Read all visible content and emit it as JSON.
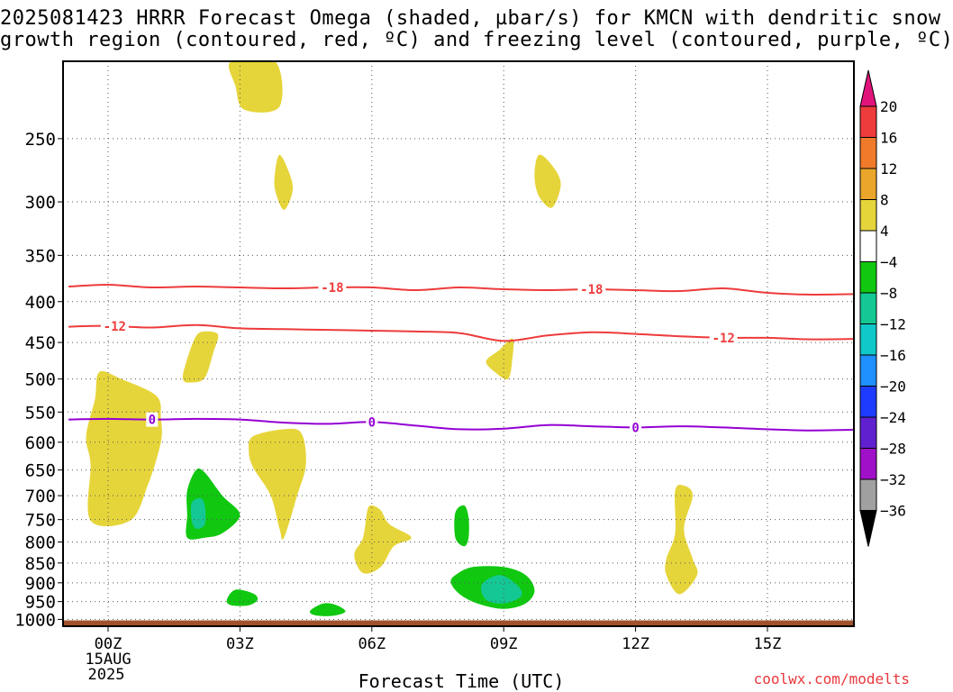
{
  "chart_data": {
    "type": "contour",
    "title": "2025081423 HRRR Forecast Omega (shaded, µbar/s) for KMCN with dendritic snow growth region (contoured, red, ºC) and freezing level (contoured, purple, ºC)",
    "title_lines": [
      "2025081423 HRRR Forecast Omega (shaded, µbar/s) for KMCN with dendritic snow",
      "growth region (contoured, red, ºC) and freezing level (contoured, purple, ºC)"
    ],
    "xlabel": "Forecast Time (UTC)",
    "x_ticks": [
      {
        "hour": 0,
        "label": "00Z",
        "date": "15AUG",
        "year": "2025"
      },
      {
        "hour": 3,
        "label": "03Z"
      },
      {
        "hour": 6,
        "label": "06Z"
      },
      {
        "hour": 9,
        "label": "09Z"
      },
      {
        "hour": 12,
        "label": "12Z"
      },
      {
        "hour": 15,
        "label": "15Z"
      }
    ],
    "xlim": [
      -0.6,
      17.4
    ],
    "y_ticks": [
      250,
      300,
      350,
      400,
      450,
      500,
      550,
      600,
      650,
      700,
      750,
      800,
      850,
      900,
      950,
      1000
    ],
    "ylim": [
      200,
      1020
    ],
    "y_scale": "pressure (log, inverted)",
    "ground_pressure": 1003,
    "ground_color": "#a0522d",
    "grid": true,
    "colorbar": {
      "labels": [
        "20",
        "16",
        "12",
        "8",
        "4",
        "−4",
        "−8",
        "−12",
        "−16",
        "−20",
        "−24",
        "−28",
        "−32",
        "−36"
      ],
      "colors": [
        "#e0147a",
        "#ee3b3b",
        "#f07a2a",
        "#eaa62a",
        "#e6d53a",
        "#ffffff",
        "#10c810",
        "#14c894",
        "#10c8c8",
        "#1e90ff",
        "#1e3cff",
        "#6020d0",
        "#a010c8",
        "#a0a0a0",
        "#000000"
      ]
    },
    "contours": [
      {
        "name": "-18",
        "color": "#ee3b3b",
        "points": [
          [
            -0.9,
            383
          ],
          [
            0,
            381
          ],
          [
            1,
            384
          ],
          [
            2,
            383
          ],
          [
            3,
            384
          ],
          [
            4,
            385
          ],
          [
            5,
            384
          ],
          [
            6,
            384
          ],
          [
            7,
            387
          ],
          [
            8,
            384
          ],
          [
            9,
            386
          ],
          [
            10,
            387
          ],
          [
            11,
            386
          ],
          [
            12,
            387
          ],
          [
            13,
            388
          ],
          [
            14,
            385
          ],
          [
            15,
            390
          ],
          [
            16,
            392
          ],
          [
            17.4,
            391
          ]
        ],
        "labels": [
          {
            "x": 5.1,
            "text": "-18"
          },
          {
            "x": 11.0,
            "text": "-18"
          }
        ]
      },
      {
        "name": "-12",
        "color": "#ee3b3b",
        "points": [
          [
            -0.9,
            430
          ],
          [
            0,
            429
          ],
          [
            1,
            431
          ],
          [
            2,
            428
          ],
          [
            3,
            432
          ],
          [
            4,
            433
          ],
          [
            5,
            434
          ],
          [
            6,
            435
          ],
          [
            7,
            436
          ],
          [
            8,
            438
          ],
          [
            9,
            448
          ],
          [
            10,
            441
          ],
          [
            11,
            437
          ],
          [
            12,
            439
          ],
          [
            13,
            442
          ],
          [
            14,
            444
          ],
          [
            15,
            444
          ],
          [
            16,
            446
          ],
          [
            17.4,
            445
          ]
        ],
        "labels": [
          {
            "x": 0.15,
            "text": "-12"
          },
          {
            "x": 14.0,
            "text": "-12"
          }
        ]
      },
      {
        "name": "0",
        "color": "#9400d3",
        "points": [
          [
            -0.9,
            562
          ],
          [
            0,
            561
          ],
          [
            1,
            562
          ],
          [
            2,
            561
          ],
          [
            3,
            562
          ],
          [
            4,
            567
          ],
          [
            5,
            569
          ],
          [
            6,
            566
          ],
          [
            7,
            572
          ],
          [
            8,
            578
          ],
          [
            9,
            577
          ],
          [
            10,
            571
          ],
          [
            11,
            573
          ],
          [
            12,
            575
          ],
          [
            13,
            573
          ],
          [
            14,
            575
          ],
          [
            15,
            578
          ],
          [
            16,
            580
          ],
          [
            17.4,
            578
          ]
        ],
        "labels": [
          {
            "x": 1.0,
            "text": "0"
          },
          {
            "x": 6.0,
            "text": "0"
          },
          {
            "x": 12.0,
            "text": "0"
          }
        ]
      }
    ],
    "shaded_regions": [
      {
        "category": "4 to 8",
        "color": "#e6d53a",
        "points": [
          [
            2.8,
            200
          ],
          [
            3.8,
            200
          ],
          [
            3.9,
            228
          ],
          [
            3.1,
            230
          ],
          [
            2.9,
            215
          ]
        ]
      },
      {
        "category": "4 to 8",
        "color": "#e6d53a",
        "points": [
          [
            3.9,
            262
          ],
          [
            4.1,
            274
          ],
          [
            4.2,
            290
          ],
          [
            4.0,
            307
          ],
          [
            3.8,
            290
          ],
          [
            3.8,
            275
          ]
        ]
      },
      {
        "category": "4 to 8",
        "color": "#e6d53a",
        "points": [
          [
            9.8,
            262
          ],
          [
            10.1,
            270
          ],
          [
            10.3,
            285
          ],
          [
            10.1,
            305
          ],
          [
            9.8,
            295
          ],
          [
            9.7,
            278
          ]
        ]
      },
      {
        "category": "4 to 8",
        "color": "#e6d53a",
        "points": [
          [
            1.8,
            472
          ],
          [
            2.0,
            442
          ],
          [
            2.2,
            436
          ],
          [
            2.5,
            440
          ],
          [
            2.4,
            462
          ],
          [
            2.2,
            498
          ],
          [
            1.9,
            505
          ],
          [
            1.7,
            500
          ]
        ]
      },
      {
        "category": "4 to 8",
        "color": "#e6d53a",
        "points": [
          [
            8.6,
            475
          ],
          [
            8.9,
            460
          ],
          [
            9.2,
            445
          ],
          [
            9.2,
            470
          ],
          [
            9.1,
            500
          ],
          [
            8.8,
            490
          ]
        ]
      },
      {
        "category": "4 to 8",
        "color": "#e6d53a",
        "points": [
          [
            -0.2,
            490
          ],
          [
            0.3,
            500
          ],
          [
            1.1,
            525
          ],
          [
            1.2,
            560
          ],
          [
            1.2,
            600
          ],
          [
            0.9,
            680
          ],
          [
            0.5,
            752
          ],
          [
            -0.4,
            752
          ],
          [
            -0.4,
            640
          ],
          [
            -0.5,
            590
          ],
          [
            -0.3,
            530
          ]
        ]
      },
      {
        "category": "4 to 8",
        "color": "#e6d53a",
        "points": [
          [
            3.3,
            590
          ],
          [
            4.0,
            578
          ],
          [
            4.4,
            585
          ],
          [
            4.5,
            640
          ],
          [
            4.3,
            700
          ],
          [
            4.0,
            790
          ],
          [
            3.9,
            770
          ],
          [
            3.7,
            700
          ],
          [
            3.3,
            645
          ],
          [
            3.2,
            615
          ]
        ]
      },
      {
        "category": "4 to 8",
        "color": "#e6d53a",
        "points": [
          [
            5.9,
            730
          ],
          [
            6.0,
            720
          ],
          [
            6.2,
            730
          ],
          [
            6.4,
            760
          ],
          [
            6.9,
            790
          ],
          [
            6.5,
            810
          ],
          [
            6.2,
            860
          ],
          [
            5.8,
            875
          ],
          [
            5.6,
            830
          ],
          [
            5.8,
            790
          ]
        ]
      },
      {
        "category": "4 to 8",
        "color": "#e6d53a",
        "points": [
          [
            12.9,
            690
          ],
          [
            13.1,
            680
          ],
          [
            13.3,
            700
          ],
          [
            13.1,
            770
          ],
          [
            13.3,
            840
          ],
          [
            13.4,
            880
          ],
          [
            13.0,
            930
          ],
          [
            12.7,
            880
          ],
          [
            12.7,
            840
          ],
          [
            12.9,
            780
          ]
        ]
      },
      {
        "category": "-4 to -8",
        "color": "#10c810",
        "points": [
          [
            1.8,
            690
          ],
          [
            2.0,
            650
          ],
          [
            2.2,
            655
          ],
          [
            2.6,
            700
          ],
          [
            3.0,
            740
          ],
          [
            2.6,
            780
          ],
          [
            2.2,
            790
          ],
          [
            1.8,
            790
          ],
          [
            1.8,
            740
          ]
        ]
      },
      {
        "category": "-4 to -8",
        "color": "#10c810",
        "points": [
          [
            7.9,
            735
          ],
          [
            8.1,
            720
          ],
          [
            8.2,
            745
          ],
          [
            8.2,
            790
          ],
          [
            8.1,
            810
          ],
          [
            7.9,
            790
          ]
        ]
      },
      {
        "category": "-4 to -8",
        "color": "#10c810",
        "points": [
          [
            7.9,
            880
          ],
          [
            8.3,
            860
          ],
          [
            9.0,
            860
          ],
          [
            9.5,
            880
          ],
          [
            9.7,
            920
          ],
          [
            9.5,
            955
          ],
          [
            9.0,
            970
          ],
          [
            8.4,
            955
          ],
          [
            8.0,
            930
          ],
          [
            7.8,
            900
          ]
        ]
      },
      {
        "category": "-4 to -8",
        "color": "#10c810",
        "points": [
          [
            2.7,
            945
          ],
          [
            2.9,
            918
          ],
          [
            3.3,
            928
          ],
          [
            3.4,
            945
          ],
          [
            3.2,
            960
          ],
          [
            2.8,
            960
          ]
        ]
      },
      {
        "category": "-4 to -8",
        "color": "#10c810",
        "points": [
          [
            4.6,
            975
          ],
          [
            4.9,
            955
          ],
          [
            5.2,
            960
          ],
          [
            5.4,
            978
          ],
          [
            5.1,
            990
          ],
          [
            4.7,
            988
          ]
        ]
      },
      {
        "category": "-8 to -12",
        "color": "#14c894",
        "points": [
          [
            1.9,
            715
          ],
          [
            2.1,
            705
          ],
          [
            2.2,
            720
          ],
          [
            2.2,
            760
          ],
          [
            2.0,
            770
          ],
          [
            1.9,
            750
          ]
        ]
      },
      {
        "category": "-8 to -12",
        "color": "#14c894",
        "points": [
          [
            8.5,
            905
          ],
          [
            8.9,
            880
          ],
          [
            9.3,
            905
          ],
          [
            9.4,
            935
          ],
          [
            9.0,
            955
          ],
          [
            8.6,
            945
          ]
        ]
      }
    ]
  },
  "watermark": "coolwx.com/modelts"
}
